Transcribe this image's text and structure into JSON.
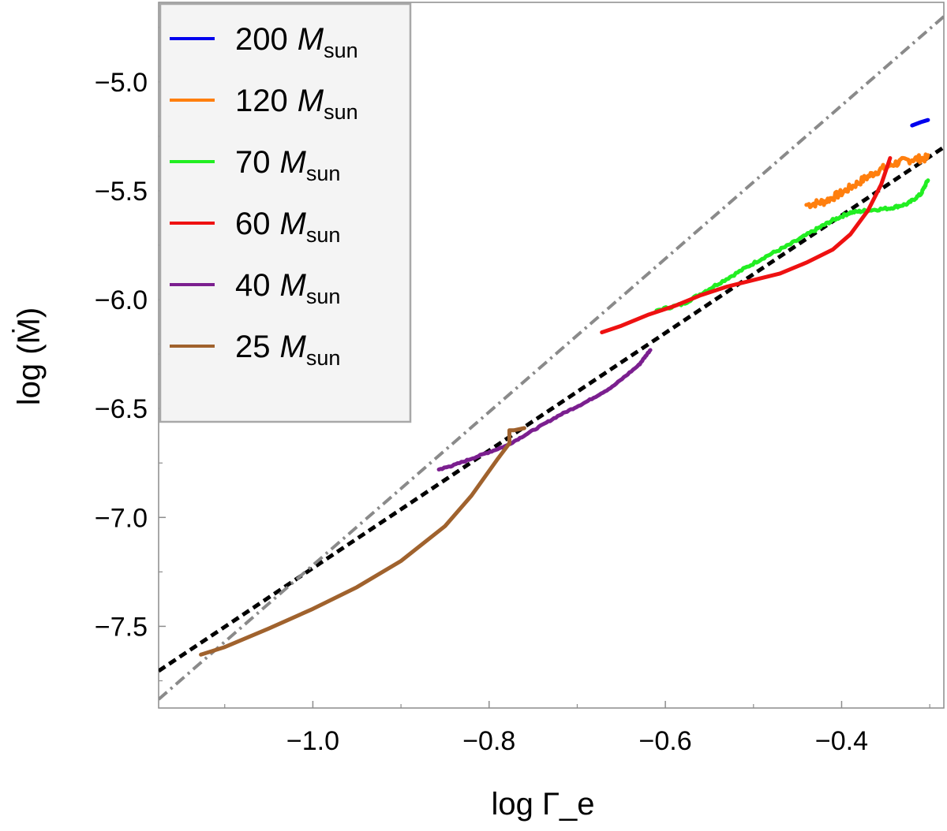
{
  "chart_data": {
    "type": "line",
    "title": "",
    "xlabel": "log Γ_e",
    "ylabel": "log (Ṁ)",
    "xlim": [
      -1.175,
      -0.284
    ],
    "ylim": [
      -7.875,
      -4.635
    ],
    "x_ticks": [
      -1.0,
      -0.8,
      -0.6,
      -0.4
    ],
    "x_tick_labels": [
      "−1.0",
      "−0.8",
      "−0.6",
      "−0.4"
    ],
    "y_ticks": [
      -5.0,
      -5.5,
      -6.0,
      -6.5,
      -7.0,
      -7.5
    ],
    "y_tick_labels": [
      "−5.0",
      "−5.5",
      "−6.0",
      "−6.5",
      "−7.0",
      "−7.5"
    ],
    "grid": false,
    "legend_position": "top-left",
    "series": [
      {
        "name": "200 M_sun",
        "label_num": "200",
        "label_var": "M",
        "label_sub": "sun",
        "color": "#0000ee",
        "noise": 0,
        "points": [
          [
            -0.32,
            -5.2
          ],
          [
            -0.31,
            -5.185
          ],
          [
            -0.302,
            -5.175
          ]
        ]
      },
      {
        "name": "120 M_sun",
        "label_num": "120",
        "label_var": "M",
        "label_sub": "sun",
        "color": "#ff7f0e",
        "noise": 0.018,
        "points": [
          [
            -0.44,
            -5.565
          ],
          [
            -0.42,
            -5.55
          ],
          [
            -0.4,
            -5.51
          ],
          [
            -0.38,
            -5.46
          ],
          [
            -0.36,
            -5.41
          ],
          [
            -0.34,
            -5.375
          ],
          [
            -0.32,
            -5.355
          ],
          [
            -0.302,
            -5.35
          ]
        ]
      },
      {
        "name": "70 M_sun",
        "label_num": "70",
        "label_var": "M",
        "label_sub": "sun",
        "color": "#22ee22",
        "noise": 0.006,
        "points": [
          [
            -0.61,
            -6.05
          ],
          [
            -0.58,
            -6.02
          ],
          [
            -0.55,
            -5.95
          ],
          [
            -0.52,
            -5.88
          ],
          [
            -0.49,
            -5.81
          ],
          [
            -0.46,
            -5.75
          ],
          [
            -0.43,
            -5.68
          ],
          [
            -0.41,
            -5.635
          ],
          [
            -0.39,
            -5.6
          ],
          [
            -0.37,
            -5.59
          ],
          [
            -0.345,
            -5.58
          ],
          [
            -0.325,
            -5.56
          ],
          [
            -0.31,
            -5.515
          ],
          [
            -0.302,
            -5.45
          ]
        ]
      },
      {
        "name": "60 M_sun",
        "label_num": "60",
        "label_var": "M",
        "label_sub": "sun",
        "color": "#ee1111",
        "noise": 0,
        "points": [
          [
            -0.672,
            -6.15
          ],
          [
            -0.65,
            -6.12
          ],
          [
            -0.62,
            -6.07
          ],
          [
            -0.59,
            -6.03
          ],
          [
            -0.56,
            -5.98
          ],
          [
            -0.53,
            -5.94
          ],
          [
            -0.5,
            -5.91
          ],
          [
            -0.47,
            -5.88
          ],
          [
            -0.44,
            -5.83
          ],
          [
            -0.41,
            -5.77
          ],
          [
            -0.39,
            -5.7
          ],
          [
            -0.37,
            -5.59
          ],
          [
            -0.355,
            -5.47
          ],
          [
            -0.345,
            -5.35
          ]
        ]
      },
      {
        "name": "40 M_sun",
        "label_num": "40",
        "label_var": "M",
        "label_sub": "sun",
        "color": "#7b1f8f",
        "noise": 0.003,
        "points": [
          [
            -0.857,
            -6.78
          ],
          [
            -0.84,
            -6.76
          ],
          [
            -0.81,
            -6.715
          ],
          [
            -0.78,
            -6.67
          ],
          [
            -0.75,
            -6.6
          ],
          [
            -0.72,
            -6.53
          ],
          [
            -0.69,
            -6.47
          ],
          [
            -0.66,
            -6.4
          ],
          [
            -0.63,
            -6.3
          ],
          [
            -0.617,
            -6.23
          ]
        ]
      },
      {
        "name": "25 M_sun",
        "label_num": "25",
        "label_var": "M",
        "label_sub": "sun",
        "color": "#a0622d",
        "noise": 0,
        "points": [
          [
            -1.127,
            -7.63
          ],
          [
            -1.1,
            -7.595
          ],
          [
            -1.05,
            -7.51
          ],
          [
            -1.0,
            -7.42
          ],
          [
            -0.95,
            -7.32
          ],
          [
            -0.9,
            -7.2
          ],
          [
            -0.85,
            -7.04
          ],
          [
            -0.82,
            -6.9
          ],
          [
            -0.79,
            -6.73
          ],
          [
            -0.777,
            -6.66
          ],
          [
            -0.777,
            -6.6
          ],
          [
            -0.772,
            -6.6
          ],
          [
            -0.76,
            -6.59
          ]
        ]
      }
    ],
    "reference_lines": [
      {
        "name": "black dashed fit",
        "color": "#000000",
        "style": "dashed",
        "points": [
          [
            -1.175,
            -7.705
          ],
          [
            -0.284,
            -5.3
          ]
        ]
      },
      {
        "name": "gray dash-dot fit",
        "color": "#8a8a8a",
        "style": "dashdot",
        "points": [
          [
            -1.175,
            -7.835
          ],
          [
            -0.284,
            -4.7
          ]
        ]
      }
    ]
  }
}
